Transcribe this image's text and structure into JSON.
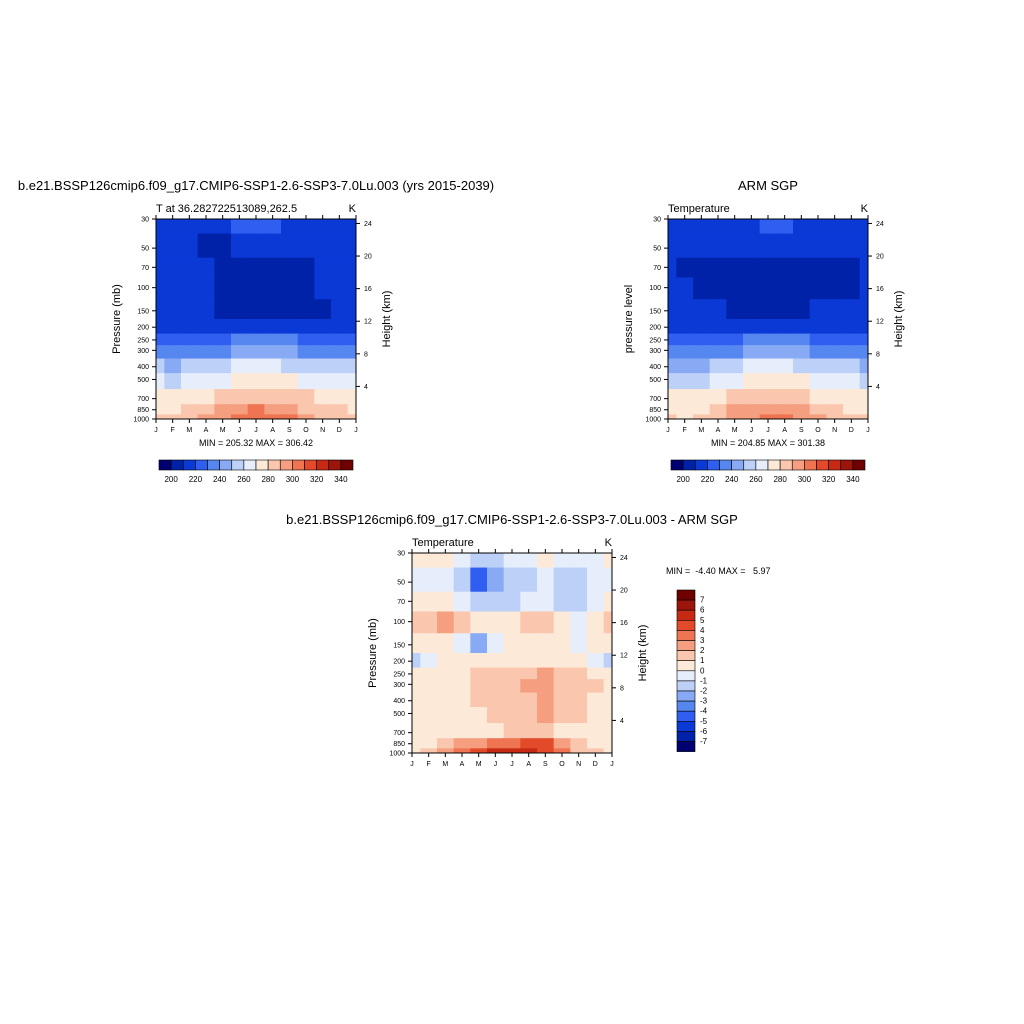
{
  "months": [
    "J",
    "F",
    "M",
    "A",
    "M",
    "J",
    "J",
    "A",
    "S",
    "O",
    "N",
    "D",
    "J"
  ],
  "pressure_ticks": [
    30,
    50,
    70,
    100,
    150,
    200,
    250,
    300,
    400,
    500,
    700,
    850,
    1000
  ],
  "height_ticks": [
    4,
    8,
    12,
    16,
    20,
    24
  ],
  "units": "K",
  "panels": {
    "model": {
      "title": "b.e21.BSSP126cmip6.f09_g17.CMIP6-SSP1-2.6-SSP3-7.0Lu.003 (yrs 2015-2039)",
      "left_label": "T at 36.282722513089,262.5",
      "ylabel": "Pressure (mb)",
      "y2label": "Height (km)",
      "minmax": "MIN = 205.32 MAX = 306.42"
    },
    "obs": {
      "title": "ARM SGP",
      "left_label": "Temperature",
      "ylabel": "pressure level",
      "y2label": "Height (km)",
      "minmax": "MIN = 204.85 MAX = 301.38"
    },
    "diff": {
      "title": "b.e21.BSSP126cmip6.f09_g17.CMIP6-SSP1-2.6-SSP3-7.0Lu.003 - ARM SGP",
      "left_label": "Temperature",
      "ylabel": "Pressure (mb)",
      "y2label": "Height (km)",
      "minmax": "MIN =  -4.40 MAX =   5.97"
    }
  },
  "colorbars": {
    "abs_labels": [
      "200",
      "220",
      "240",
      "260",
      "280",
      "300",
      "320",
      "340"
    ],
    "diff_labels": [
      "7",
      "6",
      "5",
      "4",
      "3",
      "2",
      "1",
      "0",
      "-1",
      "-2",
      "-3",
      "-4",
      "-5",
      "-6",
      "-7"
    ],
    "abs_colors": [
      "#000070",
      "#0022a8",
      "#0b39d6",
      "#2f5ef0",
      "#5686f0",
      "#88aaf4",
      "#bcd0f8",
      "#e6eefc",
      "#fde9d8",
      "#fac7ae",
      "#f59f80",
      "#ee7452",
      "#e24a2a",
      "#c62a12",
      "#9c150a",
      "#6e0000"
    ],
    "diff_colors": [
      "#6e0000",
      "#9c150a",
      "#c62a12",
      "#e24a2a",
      "#ee7452",
      "#f59f80",
      "#fac7ae",
      "#fde9d8",
      "#e6eefc",
      "#bcd0f8",
      "#88aaf4",
      "#5686f0",
      "#2f5ef0",
      "#0b39d6",
      "#0022a8",
      "#000070"
    ]
  },
  "chart_data": [
    {
      "type": "heatmap",
      "title": "b.e21.BSSP126cmip6.f09_g17.CMIP6-SSP1-2.6-SSP3-7.0Lu.003 (yrs 2015-2039)",
      "subtitle": "T at 36.282722513089,262.5",
      "units": "K",
      "x": [
        "J",
        "F",
        "M",
        "A",
        "M",
        "J",
        "J",
        "A",
        "S",
        "O",
        "N",
        "D",
        "J"
      ],
      "y_pressure_mb": [
        30,
        50,
        70,
        100,
        150,
        200,
        250,
        300,
        400,
        500,
        700,
        850,
        1000
      ],
      "values": [
        [
          214,
          214,
          215,
          216,
          218,
          220,
          221,
          220,
          218,
          216,
          215,
          214,
          214
        ],
        [
          211,
          210,
          210,
          209,
          209,
          210,
          211,
          211,
          211,
          211,
          211,
          211,
          211
        ],
        [
          216,
          214,
          213,
          210,
          207,
          206,
          206,
          206,
          207,
          208,
          212,
          214,
          216
        ],
        [
          216,
          215,
          214,
          211,
          208,
          206,
          206,
          206,
          207,
          208,
          212,
          214,
          216
        ],
        [
          217,
          216,
          215,
          214,
          207,
          206,
          206,
          206,
          206,
          207,
          209,
          214,
          217
        ],
        [
          217,
          217,
          216,
          215,
          214,
          213,
          213,
          213,
          214,
          215,
          216,
          217,
          217
        ],
        [
          228,
          227,
          226,
          226,
          228,
          230,
          231,
          231,
          230,
          229,
          228,
          228,
          228
        ],
        [
          234,
          233,
          233,
          234,
          237,
          240,
          242,
          242,
          240,
          238,
          236,
          235,
          234
        ],
        [
          250,
          249,
          250,
          252,
          256,
          260,
          262,
          262,
          259,
          256,
          253,
          251,
          250
        ],
        [
          260,
          259,
          260,
          263,
          267,
          271,
          273,
          273,
          270,
          266,
          263,
          261,
          260
        ],
        [
          272,
          271,
          273,
          277,
          282,
          286,
          288,
          288,
          285,
          280,
          276,
          273,
          272
        ],
        [
          279,
          278,
          281,
          286,
          292,
          297,
          300,
          299,
          295,
          289,
          284,
          280,
          279
        ],
        [
          282,
          281,
          285,
          290,
          297,
          302,
          306,
          305,
          300,
          293,
          287,
          283,
          282
        ]
      ],
      "min": 205.32,
      "max": 306.42,
      "xlabel": "",
      "ylabel": "Pressure (mb)",
      "y2label": "Height (km)"
    },
    {
      "type": "heatmap",
      "title": "ARM SGP",
      "subtitle": "Temperature",
      "units": "K",
      "x": [
        "J",
        "F",
        "M",
        "A",
        "M",
        "J",
        "J",
        "A",
        "S",
        "O",
        "N",
        "D",
        "J"
      ],
      "y_pressure_mb": [
        30,
        50,
        70,
        100,
        150,
        200,
        250,
        300,
        400,
        500,
        700,
        850,
        1000
      ],
      "values": [
        [
          215,
          215,
          215,
          216,
          217,
          219,
          220,
          220,
          218,
          216,
          215,
          215,
          215
        ],
        [
          213,
          212,
          212,
          211,
          211,
          211,
          212,
          212,
          212,
          212,
          212,
          212,
          213
        ],
        [
          210,
          209,
          209,
          208,
          207,
          207,
          207,
          207,
          208,
          209,
          209,
          209,
          210
        ],
        [
          212,
          210,
          208,
          206,
          205,
          205,
          205,
          205,
          205,
          206,
          207,
          209,
          212
        ],
        [
          215,
          214,
          213,
          212,
          209,
          208,
          208,
          208,
          209,
          211,
          213,
          214,
          215
        ],
        [
          217,
          217,
          216,
          215,
          214,
          213,
          213,
          213,
          214,
          215,
          216,
          217,
          217
        ],
        [
          227,
          226,
          226,
          226,
          228,
          230,
          231,
          231,
          230,
          229,
          228,
          227,
          227
        ],
        [
          233,
          233,
          233,
          234,
          237,
          240,
          242,
          242,
          240,
          238,
          236,
          234,
          233
        ],
        [
          249,
          248,
          249,
          252,
          256,
          260,
          262,
          262,
          259,
          256,
          253,
          250,
          249
        ],
        [
          259,
          258,
          259,
          263,
          267,
          271,
          273,
          273,
          270,
          266,
          263,
          260,
          259
        ],
        [
          271,
          270,
          272,
          276,
          281,
          285,
          287,
          287,
          284,
          279,
          275,
          272,
          271
        ],
        [
          278,
          277,
          279,
          284,
          290,
          295,
          298,
          297,
          293,
          287,
          282,
          279,
          278
        ],
        [
          280,
          279,
          283,
          288,
          294,
          299,
          301,
          300,
          296,
          290,
          285,
          281,
          280
        ]
      ],
      "min": 204.85,
      "max": 301.38,
      "xlabel": "",
      "ylabel": "pressure level",
      "y2label": "Height (km)"
    },
    {
      "type": "heatmap",
      "title": "b.e21.BSSP126cmip6.f09_g17.CMIP6-SSP1-2.6-SSP3-7.0Lu.003 - ARM SGP",
      "subtitle": "Temperature",
      "units": "K",
      "x": [
        "J",
        "F",
        "M",
        "A",
        "M",
        "J",
        "J",
        "A",
        "S",
        "O",
        "N",
        "D",
        "J"
      ],
      "y_pressure_mb": [
        30,
        50,
        70,
        100,
        150,
        200,
        250,
        300,
        400,
        500,
        700,
        850,
        1000
      ],
      "values": [
        [
          0.5,
          0.5,
          0.3,
          -0.5,
          -1.5,
          -1.2,
          -0.8,
          -0.3,
          0.4,
          -0.6,
          -0.4,
          -0.2,
          0.5
        ],
        [
          -0.5,
          -0.5,
          -1.0,
          -1.5,
          -4.4,
          -3.0,
          -1.5,
          -1.2,
          -1.0,
          -1.5,
          -1.2,
          -0.8,
          -0.5
        ],
        [
          0.3,
          0.2,
          0.2,
          -1.0,
          -2.0,
          -1.5,
          -1.2,
          -1.0,
          -0.8,
          -1.5,
          -1.3,
          -0.5,
          0.3
        ],
        [
          1.6,
          1.2,
          2.0,
          1.2,
          0.3,
          0.5,
          0.6,
          1.4,
          1.0,
          0.3,
          -1.0,
          0.3,
          1.6
        ],
        [
          0.4,
          0.3,
          0.2,
          -0.3,
          -2.2,
          -0.6,
          0.2,
          0.3,
          0.1,
          0.2,
          -0.8,
          0.1,
          0.4
        ],
        [
          -1.2,
          -0.5,
          0.2,
          0.3,
          0.4,
          0.5,
          0.5,
          0.5,
          0.4,
          0.3,
          0.2,
          -1.0,
          -1.2
        ],
        [
          0.6,
          0.6,
          0.5,
          0.6,
          1.2,
          1.5,
          1.6,
          1.8,
          2.0,
          1.4,
          1.2,
          0.9,
          0.6
        ],
        [
          0.6,
          0.5,
          0.5,
          0.7,
          1.3,
          1.6,
          1.9,
          2.0,
          2.2,
          1.6,
          1.3,
          1.0,
          0.6
        ],
        [
          0.6,
          0.6,
          0.7,
          0.8,
          1.2,
          1.5,
          1.7,
          1.9,
          2.5,
          1.6,
          1.2,
          0.9,
          0.6
        ],
        [
          0.5,
          0.6,
          0.8,
          0.6,
          0.6,
          1.1,
          1.6,
          1.8,
          2.0,
          1.3,
          1.0,
          0.7,
          0.5
        ],
        [
          0.4,
          0.5,
          0.6,
          0.4,
          0.3,
          0.8,
          1.2,
          1.6,
          1.8,
          0.8,
          0.5,
          0.6,
          0.4
        ],
        [
          0.5,
          0.9,
          1.4,
          2.0,
          2.6,
          3.2,
          3.8,
          4.5,
          4.0,
          2.2,
          1.3,
          0.8,
          0.5
        ],
        [
          0.8,
          1.5,
          2.5,
          3.5,
          4.5,
          5.5,
          5.97,
          5.6,
          4.6,
          3.0,
          1.8,
          1.0,
          0.8
        ]
      ],
      "min": -4.4,
      "max": 5.97,
      "xlabel": "",
      "ylabel": "Pressure (mb)",
      "y2label": "Height (km)"
    }
  ]
}
